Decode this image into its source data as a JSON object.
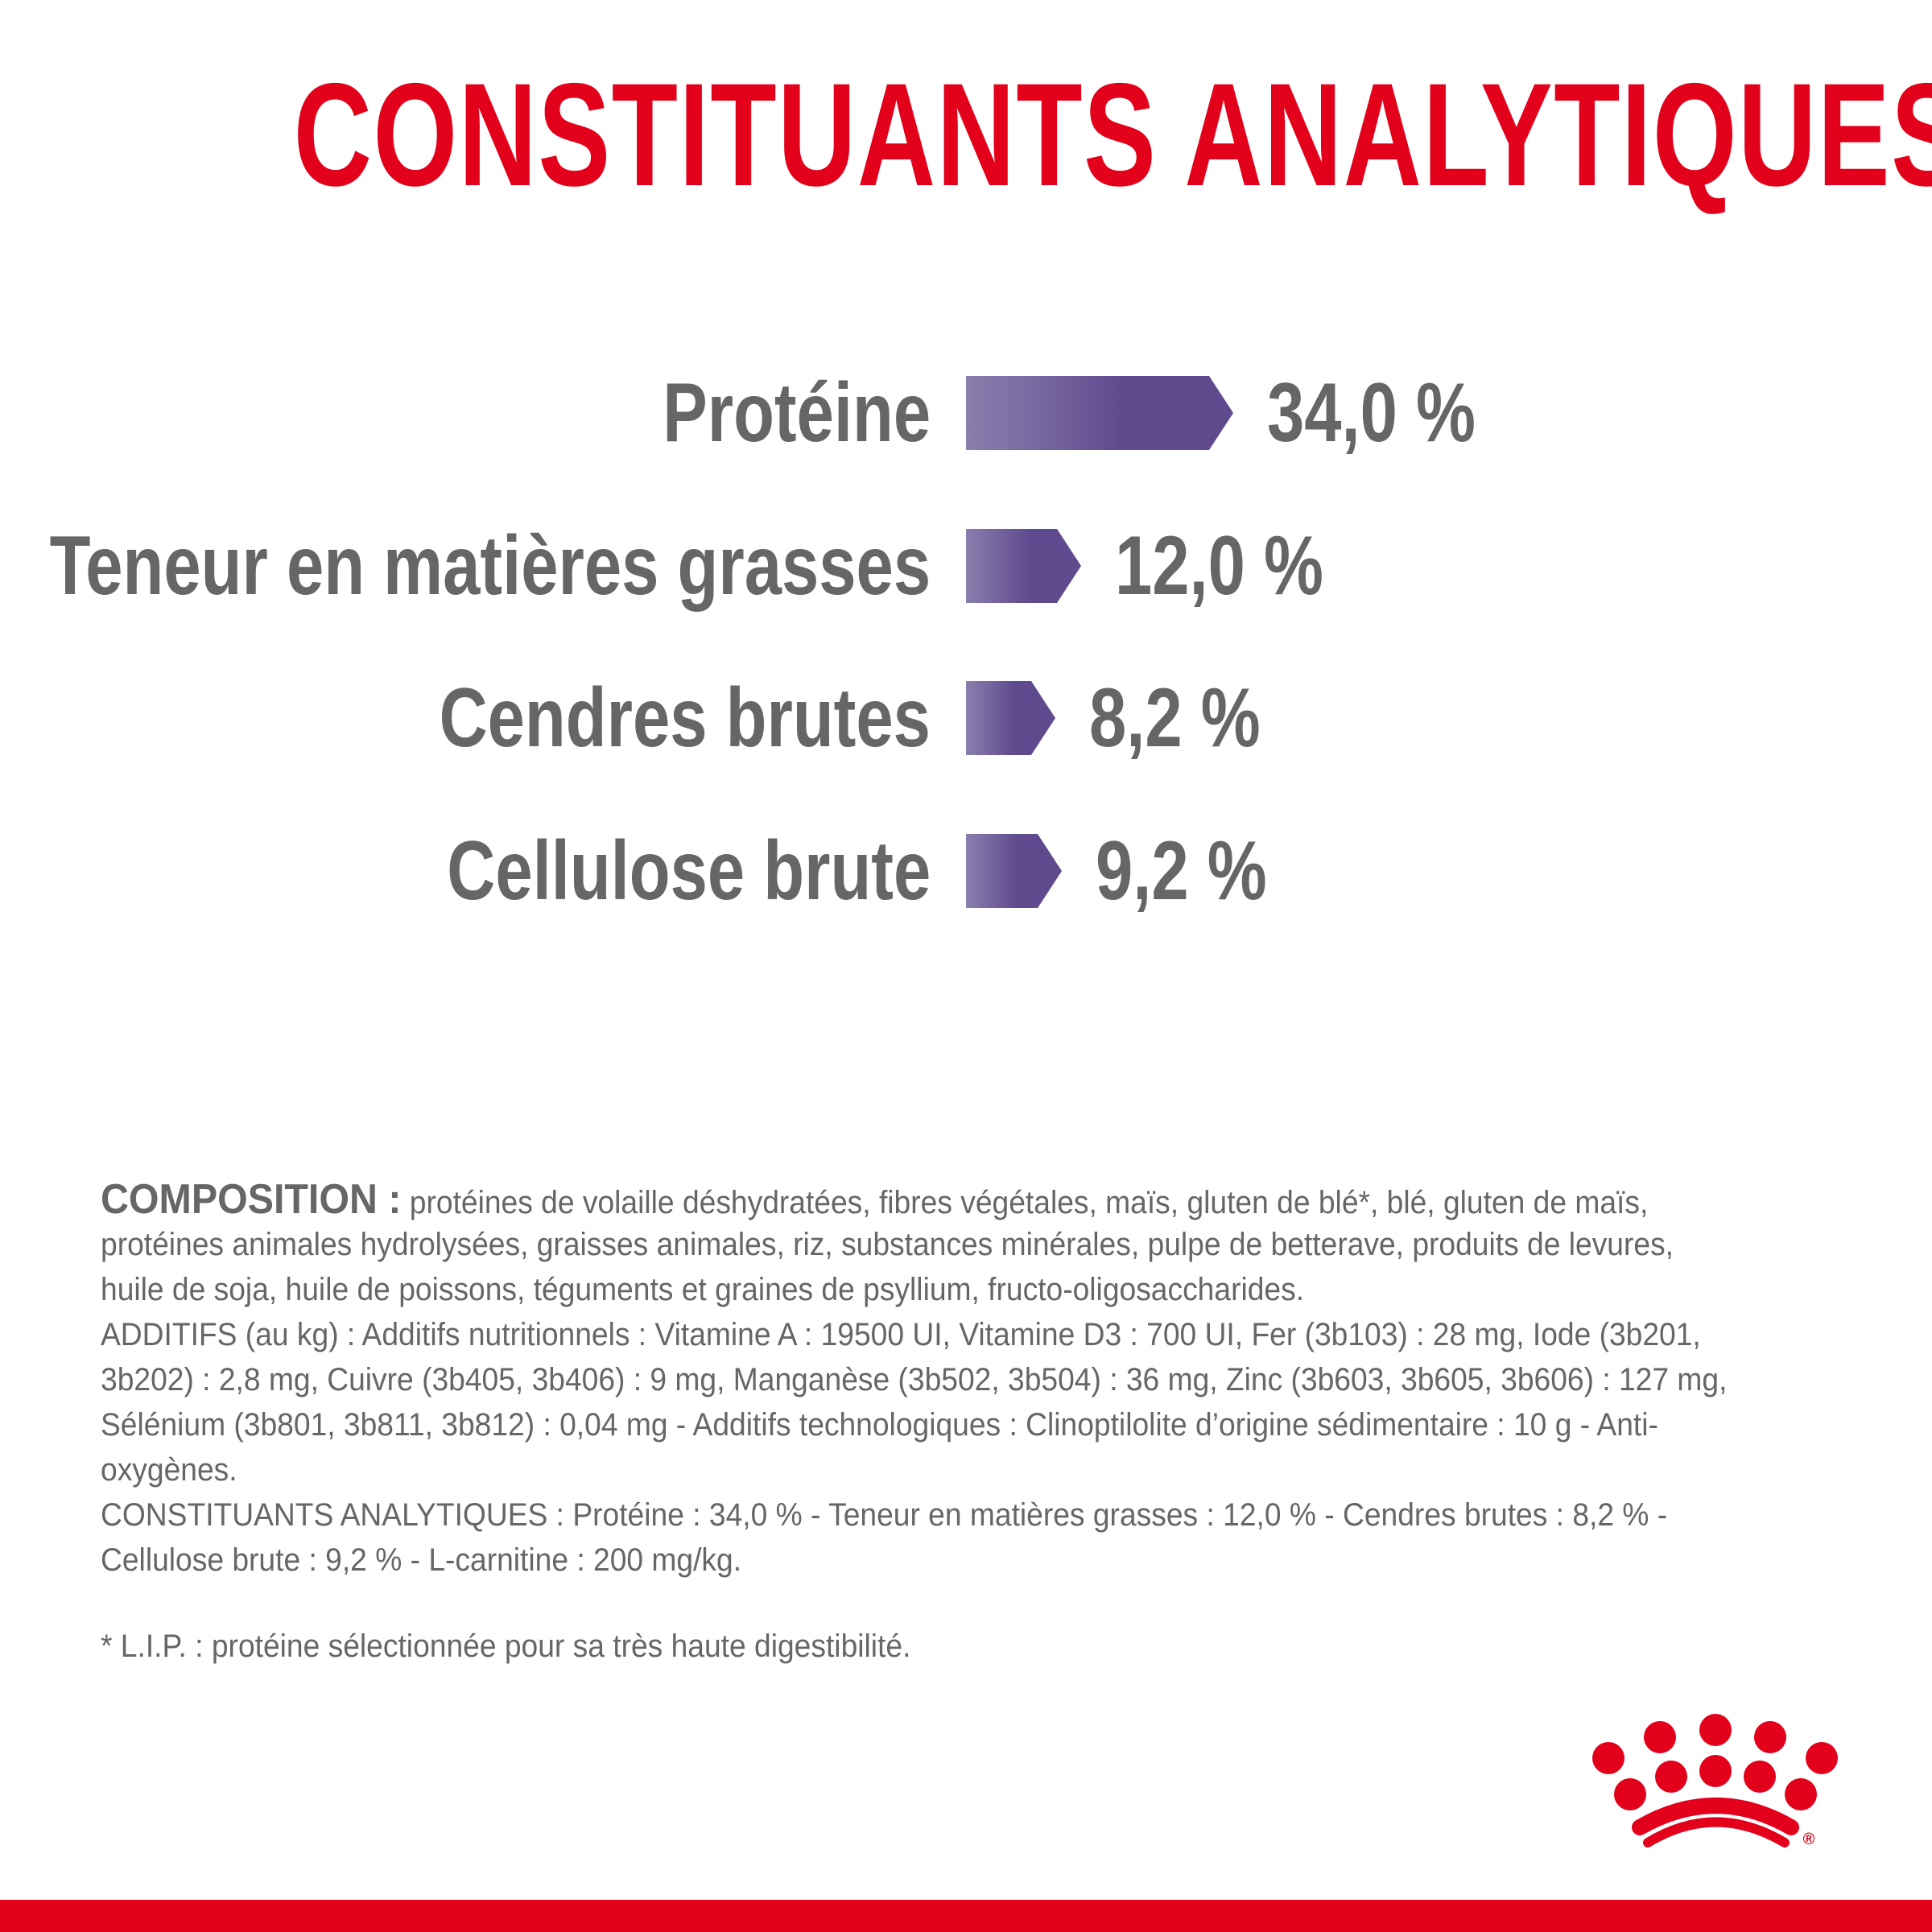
{
  "title": "CONSTITUANTS ANALYTIQUES",
  "accent_color": "#e2001a",
  "bar_color_start": "#8a7fae",
  "bar_color_end": "#5f4a8e",
  "rows": [
    {
      "label": "Protéine",
      "value": 34.0,
      "value_text": "34,0 %"
    },
    {
      "label": "Teneur en matières grasses",
      "value": 12.0,
      "value_text": "12,0 %"
    },
    {
      "label": "Cendres brutes",
      "value": 8.2,
      "value_text": "8,2 %"
    },
    {
      "label": "Cellulose brute",
      "value": 9.2,
      "value_text": "9,2 %"
    }
  ],
  "composition": {
    "heading": "COMPOSITION :",
    "lines": [
      "protéines de volaille déshydratées, fibres végétales, maïs, gluten de blé*, blé, gluten de maïs,",
      "protéines animales hydrolysées, graisses animales, riz, substances minérales, pulpe de betterave, produits de levures,",
      "huile de soja, huile de poissons, téguments et graines de psyllium, fructo-oligosaccharides.",
      "ADDITIFS (au kg) : Additifs nutritionnels : Vitamine A : 19500 UI, Vitamine D3 : 700 UI, Fer (3b103) : 28 mg, Iode (3b201,",
      "3b202) : 2,8 mg, Cuivre (3b405, 3b406) : 9 mg, Manganèse (3b502, 3b504) : 36 mg, Zinc (3b603, 3b605, 3b606) : 127 mg,",
      "Sélénium (3b801, 3b811, 3b812) : 0,04 mg - Additifs technologiques : Clinoptilolite d’origine sédimentaire : 10 g - Anti-",
      "oxygènes.",
      "CONSTITUANTS ANALYTIQUES : Protéine : 34,0 % - Teneur en matières grasses : 12,0 % - Cendres brutes : 8,2 % -",
      "Cellulose brute : 9,2 % - L-carnitine : 200 mg/kg."
    ]
  },
  "footnote": "* L.I.P. : protéine sélectionnée pour sa très haute digestibilité.",
  "logo": {
    "icon": "royal-canin-crown-logo",
    "mark": "®"
  }
}
